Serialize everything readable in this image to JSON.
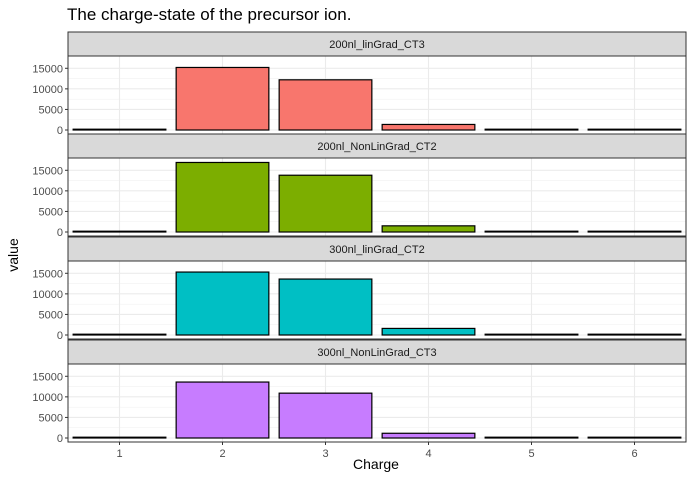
{
  "chart_data": {
    "type": "bar",
    "title": "The charge-state of the precursor ion.",
    "xlabel": "Charge",
    "ylabel": "value",
    "categories": [
      "1",
      "2",
      "3",
      "4",
      "5",
      "6"
    ],
    "y_ticks": [
      0,
      5000,
      10000,
      15000
    ],
    "y_tick_labels": [
      "0",
      "5000",
      "10000",
      "15000"
    ],
    "ylim": [
      0,
      17500
    ],
    "grid": true,
    "legend": "none",
    "panels": [
      {
        "name": "200nl_linGrad_CT3",
        "color": "#F8766D",
        "values": [
          40,
          15200,
          12200,
          1350,
          120,
          20
        ]
      },
      {
        "name": "200nl_NonLinGrad_CT2",
        "color": "#7CAE00",
        "values": [
          40,
          16900,
          13800,
          1500,
          130,
          20
        ]
      },
      {
        "name": "300nl_linGrad_CT2",
        "color": "#00BFC4",
        "values": [
          40,
          15300,
          13600,
          1600,
          140,
          20
        ]
      },
      {
        "name": "300nl_NonLinGrad_CT3",
        "color": "#C77CFF",
        "values": [
          40,
          13600,
          10900,
          1150,
          110,
          20
        ]
      }
    ]
  }
}
